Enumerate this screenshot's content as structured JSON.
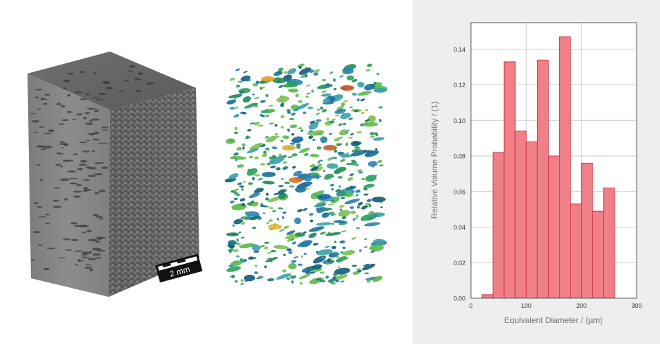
{
  "scale_bar": {
    "label": "2 mm"
  },
  "chart_data": {
    "type": "bar",
    "x_bin_edges": [
      20,
      40,
      60,
      80,
      100,
      120,
      140,
      160,
      180,
      200,
      220,
      240,
      260,
      280
    ],
    "values": [
      0.002,
      0.082,
      0.133,
      0.094,
      0.088,
      0.134,
      0.08,
      0.147,
      0.053,
      0.076,
      0.049,
      0.062,
      0.0
    ],
    "xlabel": "Equivalent Diameter / (µm)",
    "ylabel": "Relative Volume Probability / (1)",
    "xlim": [
      0,
      300
    ],
    "ylim": [
      0,
      0.155
    ],
    "xticks": [
      0,
      100,
      200,
      300
    ],
    "yticks": [
      0.0,
      0.02,
      0.04,
      0.06,
      0.08,
      0.1,
      0.12,
      0.14
    ],
    "ytick_labels": [
      "0.00",
      "0.02",
      "0.04",
      "0.06",
      "0.08",
      "0.10",
      "0.12",
      "0.14"
    ],
    "grid": true,
    "bar_fill": "#f08088",
    "bar_stroke": "#d03848"
  }
}
